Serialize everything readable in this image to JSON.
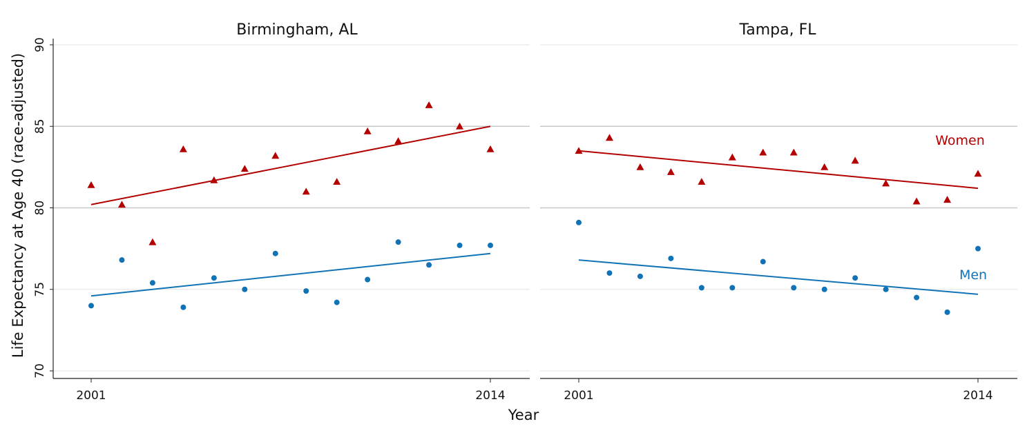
{
  "chart_data": [
    {
      "type": "scatter",
      "title": "Birmingham, AL",
      "xlabel": "Year",
      "ylabel": "Life Expectancy at Age 40 (race-adjusted)",
      "xlim": [
        2001,
        2014
      ],
      "ylim": [
        70,
        90
      ],
      "x_ticks": [
        "2001",
        "2014"
      ],
      "y_ticks": [
        "70",
        "75",
        "80",
        "85",
        "90"
      ],
      "grid": true,
      "x": [
        2001,
        2002,
        2003,
        2004,
        2005,
        2006,
        2007,
        2008,
        2009,
        2010,
        2011,
        2012,
        2013,
        2014
      ],
      "series": [
        {
          "key": "women",
          "values": [
            81.4,
            80.2,
            77.9,
            83.6,
            81.7,
            82.4,
            83.2,
            81.0,
            81.6,
            84.7,
            84.1,
            86.3,
            85.0,
            83.6
          ],
          "trend": [
            80.2,
            85.0
          ],
          "color": "#b30000",
          "marker": "triangle"
        },
        {
          "key": "men",
          "values": [
            74.0,
            76.8,
            75.4,
            73.9,
            75.7,
            75.0,
            77.2,
            74.9,
            74.2,
            75.6,
            77.9,
            76.5,
            77.7,
            77.7
          ],
          "trend": [
            74.6,
            77.2
          ],
          "color": "#1173b5",
          "marker": "circle"
        }
      ]
    },
    {
      "type": "scatter",
      "title": "Tampa, FL",
      "xlim": [
        2001,
        2014
      ],
      "ylim": [
        70,
        90
      ],
      "x_ticks": [
        "2001",
        "2014"
      ],
      "grid": true,
      "x": [
        2001,
        2002,
        2003,
        2004,
        2005,
        2006,
        2007,
        2008,
        2009,
        2010,
        2011,
        2012,
        2013,
        2014
      ],
      "series": [
        {
          "key": "women",
          "name": "Women",
          "values": [
            83.5,
            84.3,
            82.5,
            82.2,
            81.6,
            83.1,
            83.4,
            83.4,
            82.5,
            82.9,
            81.5,
            80.4,
            80.5,
            82.1
          ],
          "trend": [
            83.5,
            81.2
          ],
          "color": "#b30000",
          "marker": "triangle"
        },
        {
          "key": "men",
          "name": "Men",
          "values": [
            79.1,
            76.0,
            75.8,
            76.9,
            75.1,
            75.1,
            76.7,
            75.1,
            75.0,
            75.7,
            75.0,
            74.5,
            73.6,
            77.5
          ],
          "trend": [
            76.8,
            74.7
          ],
          "color": "#1173b5",
          "marker": "circle"
        }
      ]
    }
  ]
}
